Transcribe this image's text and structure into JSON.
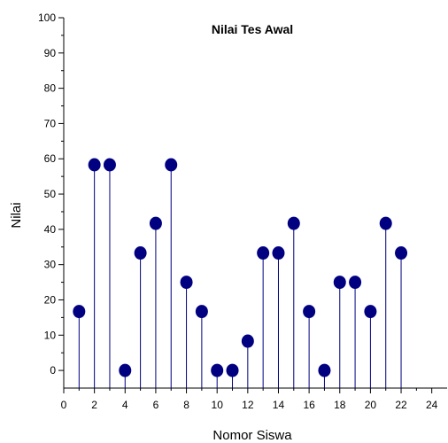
{
  "chart_data": {
    "type": "scatter",
    "style": "stem",
    "title": "Nilai Tes Awal",
    "xlabel": "Nomor Siswa",
    "ylabel": "Nilai",
    "xlim": [
      0,
      25
    ],
    "ylim": [
      -5,
      100
    ],
    "x_ticks": [
      0,
      2,
      4,
      6,
      8,
      10,
      12,
      14,
      16,
      18,
      20,
      22,
      24
    ],
    "y_ticks": [
      0,
      10,
      20,
      30,
      40,
      50,
      60,
      70,
      80,
      90,
      100
    ],
    "x": [
      1,
      2,
      3,
      4,
      5,
      6,
      7,
      8,
      9,
      10,
      11,
      12,
      13,
      14,
      15,
      16,
      17,
      18,
      19,
      20,
      21,
      22
    ],
    "y": [
      16.7,
      58.3,
      58.3,
      0,
      33.3,
      41.7,
      58.3,
      25,
      16.7,
      0,
      0,
      8.3,
      33.3,
      33.3,
      41.7,
      16.7,
      0,
      25,
      25,
      16.7,
      41.7,
      33.3
    ],
    "marker_color": "#000080",
    "stem_color": "#000080",
    "grid": false,
    "legend": "none"
  }
}
